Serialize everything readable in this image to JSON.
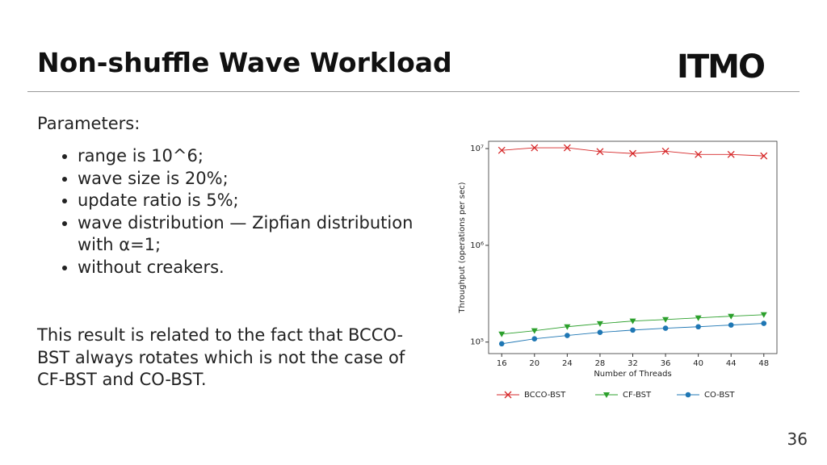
{
  "header": {
    "title": "Non-shuffle Wave Workload",
    "logo": "ITMO"
  },
  "body": {
    "intro": "Parameters:",
    "bullets": [
      "range is 10^6;",
      "wave size is 20%;",
      "update ratio is 5%;",
      "wave distribution — Zipfian distribution with α=1;",
      "without creakers."
    ],
    "conclusion": "This result is related to the fact that BCCO-BST always rotates which is not the case of CF-BST and CO-BST."
  },
  "page_number": "36",
  "chart_data": {
    "type": "line",
    "x_label": "Number of Threads",
    "y_label": "Throughput (operations per sec)",
    "x": [
      16,
      20,
      24,
      28,
      32,
      36,
      40,
      44,
      48
    ],
    "xlim": [
      14.4,
      49.6
    ],
    "xticks": [
      16,
      20,
      24,
      28,
      32,
      36,
      40,
      44,
      48
    ],
    "ylim": [
      76000,
      11900000
    ],
    "yscale": "log",
    "yticks": [
      {
        "value": 100000,
        "label": "10⁵"
      },
      {
        "value": 1000000,
        "label": "10⁶"
      },
      {
        "value": 10000000,
        "label": "10⁷"
      }
    ],
    "grid": false,
    "legend": "bottom",
    "series": [
      {
        "name": "BCCO-BST",
        "color": "#d62728",
        "marker": "x",
        "values": [
          9600000,
          10200000,
          10200000,
          9300000,
          8900000,
          9400000,
          8700000,
          8700000,
          8400000
        ]
      },
      {
        "name": "CF-BST",
        "color": "#2ca02c",
        "marker": "triangle-down",
        "values": [
          121000,
          131000,
          144000,
          155000,
          165000,
          171000,
          178000,
          185000,
          192000
        ]
      },
      {
        "name": "CO-BST",
        "color": "#1f77b4",
        "marker": "circle",
        "values": [
          96000,
          108000,
          117000,
          126000,
          133000,
          139000,
          144000,
          150000,
          156000
        ]
      }
    ]
  }
}
